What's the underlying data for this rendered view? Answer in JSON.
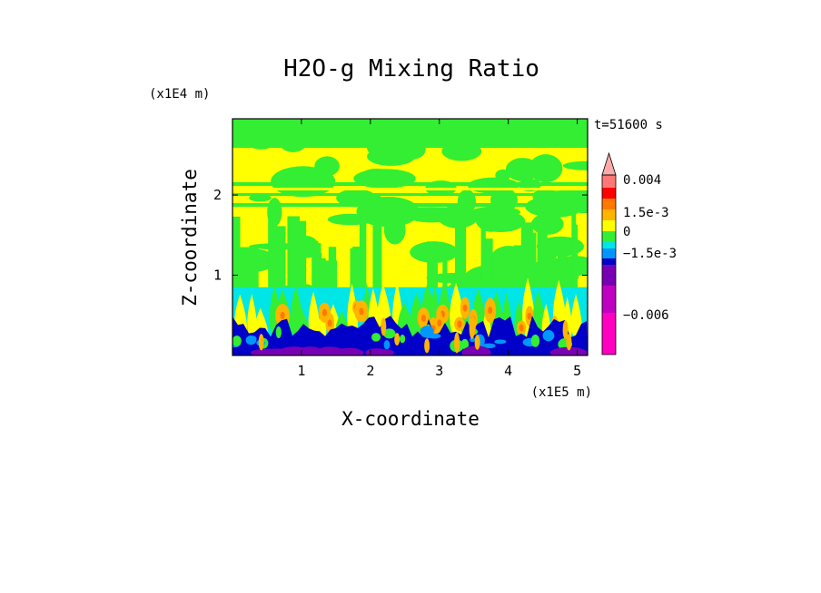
{
  "chart_data": {
    "type": "heatmap",
    "title": "H2O-g Mixing Ratio",
    "xlabel": "X-coordinate",
    "ylabel": "Z-coordinate",
    "x_unit": "(x1E5 m)",
    "y_unit": "(x1E4 m)",
    "time_label": "t=51600 s",
    "xlim": [
      0,
      5.15
    ],
    "ylim": [
      0,
      2.95
    ],
    "x_ticks": [
      1,
      2,
      3,
      4,
      5
    ],
    "y_ticks": [
      1,
      2
    ],
    "colorbar": {
      "labels": [
        "0.004",
        "1.5e-3",
        "0",
        "−1.5e-3",
        "−0.006"
      ],
      "levels": [
        {
          "color": "#ff00c0",
          "from": -0.009,
          "to": -0.006
        },
        {
          "color": "#c000c0",
          "from": -0.006,
          "to": -0.004
        },
        {
          "color": "#7800b4",
          "from": -0.004,
          "to": -0.002
        },
        {
          "color": "#0000c8",
          "from": -0.002,
          "to": -0.0015
        },
        {
          "color": "#0096ff",
          "from": -0.0015,
          "to": -0.0005
        },
        {
          "color": "#00e6e6",
          "from": -0.0005,
          "to": 0
        },
        {
          "color": "#33ee33",
          "from": 0,
          "to": 0.0005
        },
        {
          "color": "#ffff00",
          "from": 0.0005,
          "to": 0.001
        },
        {
          "color": "#ffb400",
          "from": 0.001,
          "to": 0.0015
        },
        {
          "color": "#ff7800",
          "from": 0.0015,
          "to": 0.002
        },
        {
          "color": "#ff0000",
          "from": 0.002,
          "to": 0.003
        },
        {
          "color": "#ff7878",
          "from": 0.003,
          "to": 0.004
        },
        {
          "color": "#ffaaaa",
          "from": 0.004,
          "to": null
        }
      ]
    },
    "field_description_layers": [
      {
        "z_range": [
          0,
          0.5
        ],
        "dominant": [
          "#0000c8",
          "#7800b4",
          "#0096ff",
          "#ff7800"
        ]
      },
      {
        "z_range": [
          0.5,
          0.85
        ],
        "dominant": [
          "#00e6e6",
          "#ffff00",
          "#33ee33"
        ]
      },
      {
        "z_range": [
          0.85,
          2.95
        ],
        "dominant": [
          "#ffff00",
          "#33ee33"
        ]
      }
    ]
  }
}
